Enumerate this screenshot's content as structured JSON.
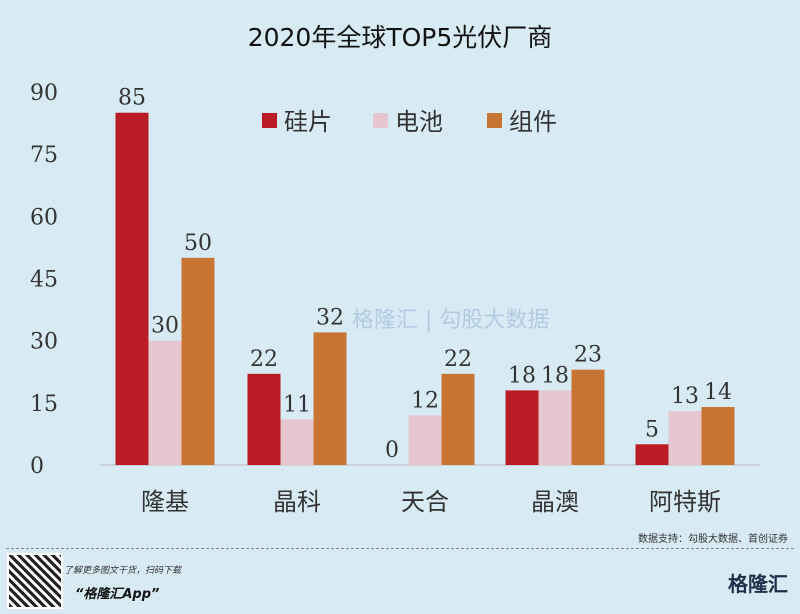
{
  "chart_data": {
    "type": "bar",
    "title": "2020年全球TOP5光伏厂商",
    "categories": [
      "隆基",
      "晶科",
      "天合",
      "晶澳",
      "阿特斯"
    ],
    "series": [
      {
        "name": "硅片",
        "values": [
          85,
          22,
          0,
          18,
          5
        ],
        "color": "#b91c24"
      },
      {
        "name": "电池",
        "values": [
          30,
          11,
          12,
          18,
          13
        ],
        "color": "#e6c7d0"
      },
      {
        "name": "组件",
        "values": [
          50,
          32,
          22,
          23,
          14
        ],
        "color": "#c87533"
      }
    ],
    "yticks": [
      0,
      15,
      30,
      45,
      60,
      75,
      90
    ],
    "ylim": [
      0,
      90
    ],
    "legend": "top-right",
    "grid": false
  },
  "watermark": {
    "brand": "格隆汇",
    "text": "勾股大数据"
  },
  "footer": {
    "source": "数据支持：勾股大数据、首创证券",
    "promo_line": "了解更多图文干货，扫码下载",
    "promo_app": "“格隆汇App”",
    "logo": "格隆汇"
  }
}
